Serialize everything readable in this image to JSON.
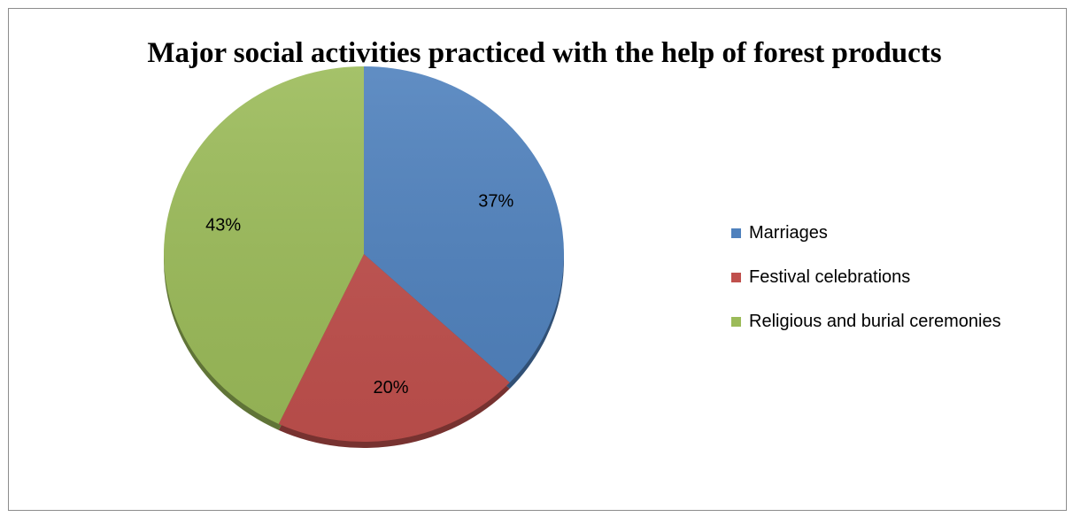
{
  "chart_data": {
    "type": "pie",
    "title": "Major social activities practiced with the help of forest products",
    "slices": [
      {
        "label": "Marriages",
        "value": 37,
        "display": "37%",
        "color": "#4f81bd"
      },
      {
        "label": "Festival celebrations",
        "value": 20,
        "display": "20%",
        "color": "#c0504d"
      },
      {
        "label": "Religious and burial ceremonies",
        "value": 43,
        "display": "43%",
        "color": "#9bbb59"
      }
    ],
    "legend_position": "right",
    "style": "3d-tilted"
  }
}
